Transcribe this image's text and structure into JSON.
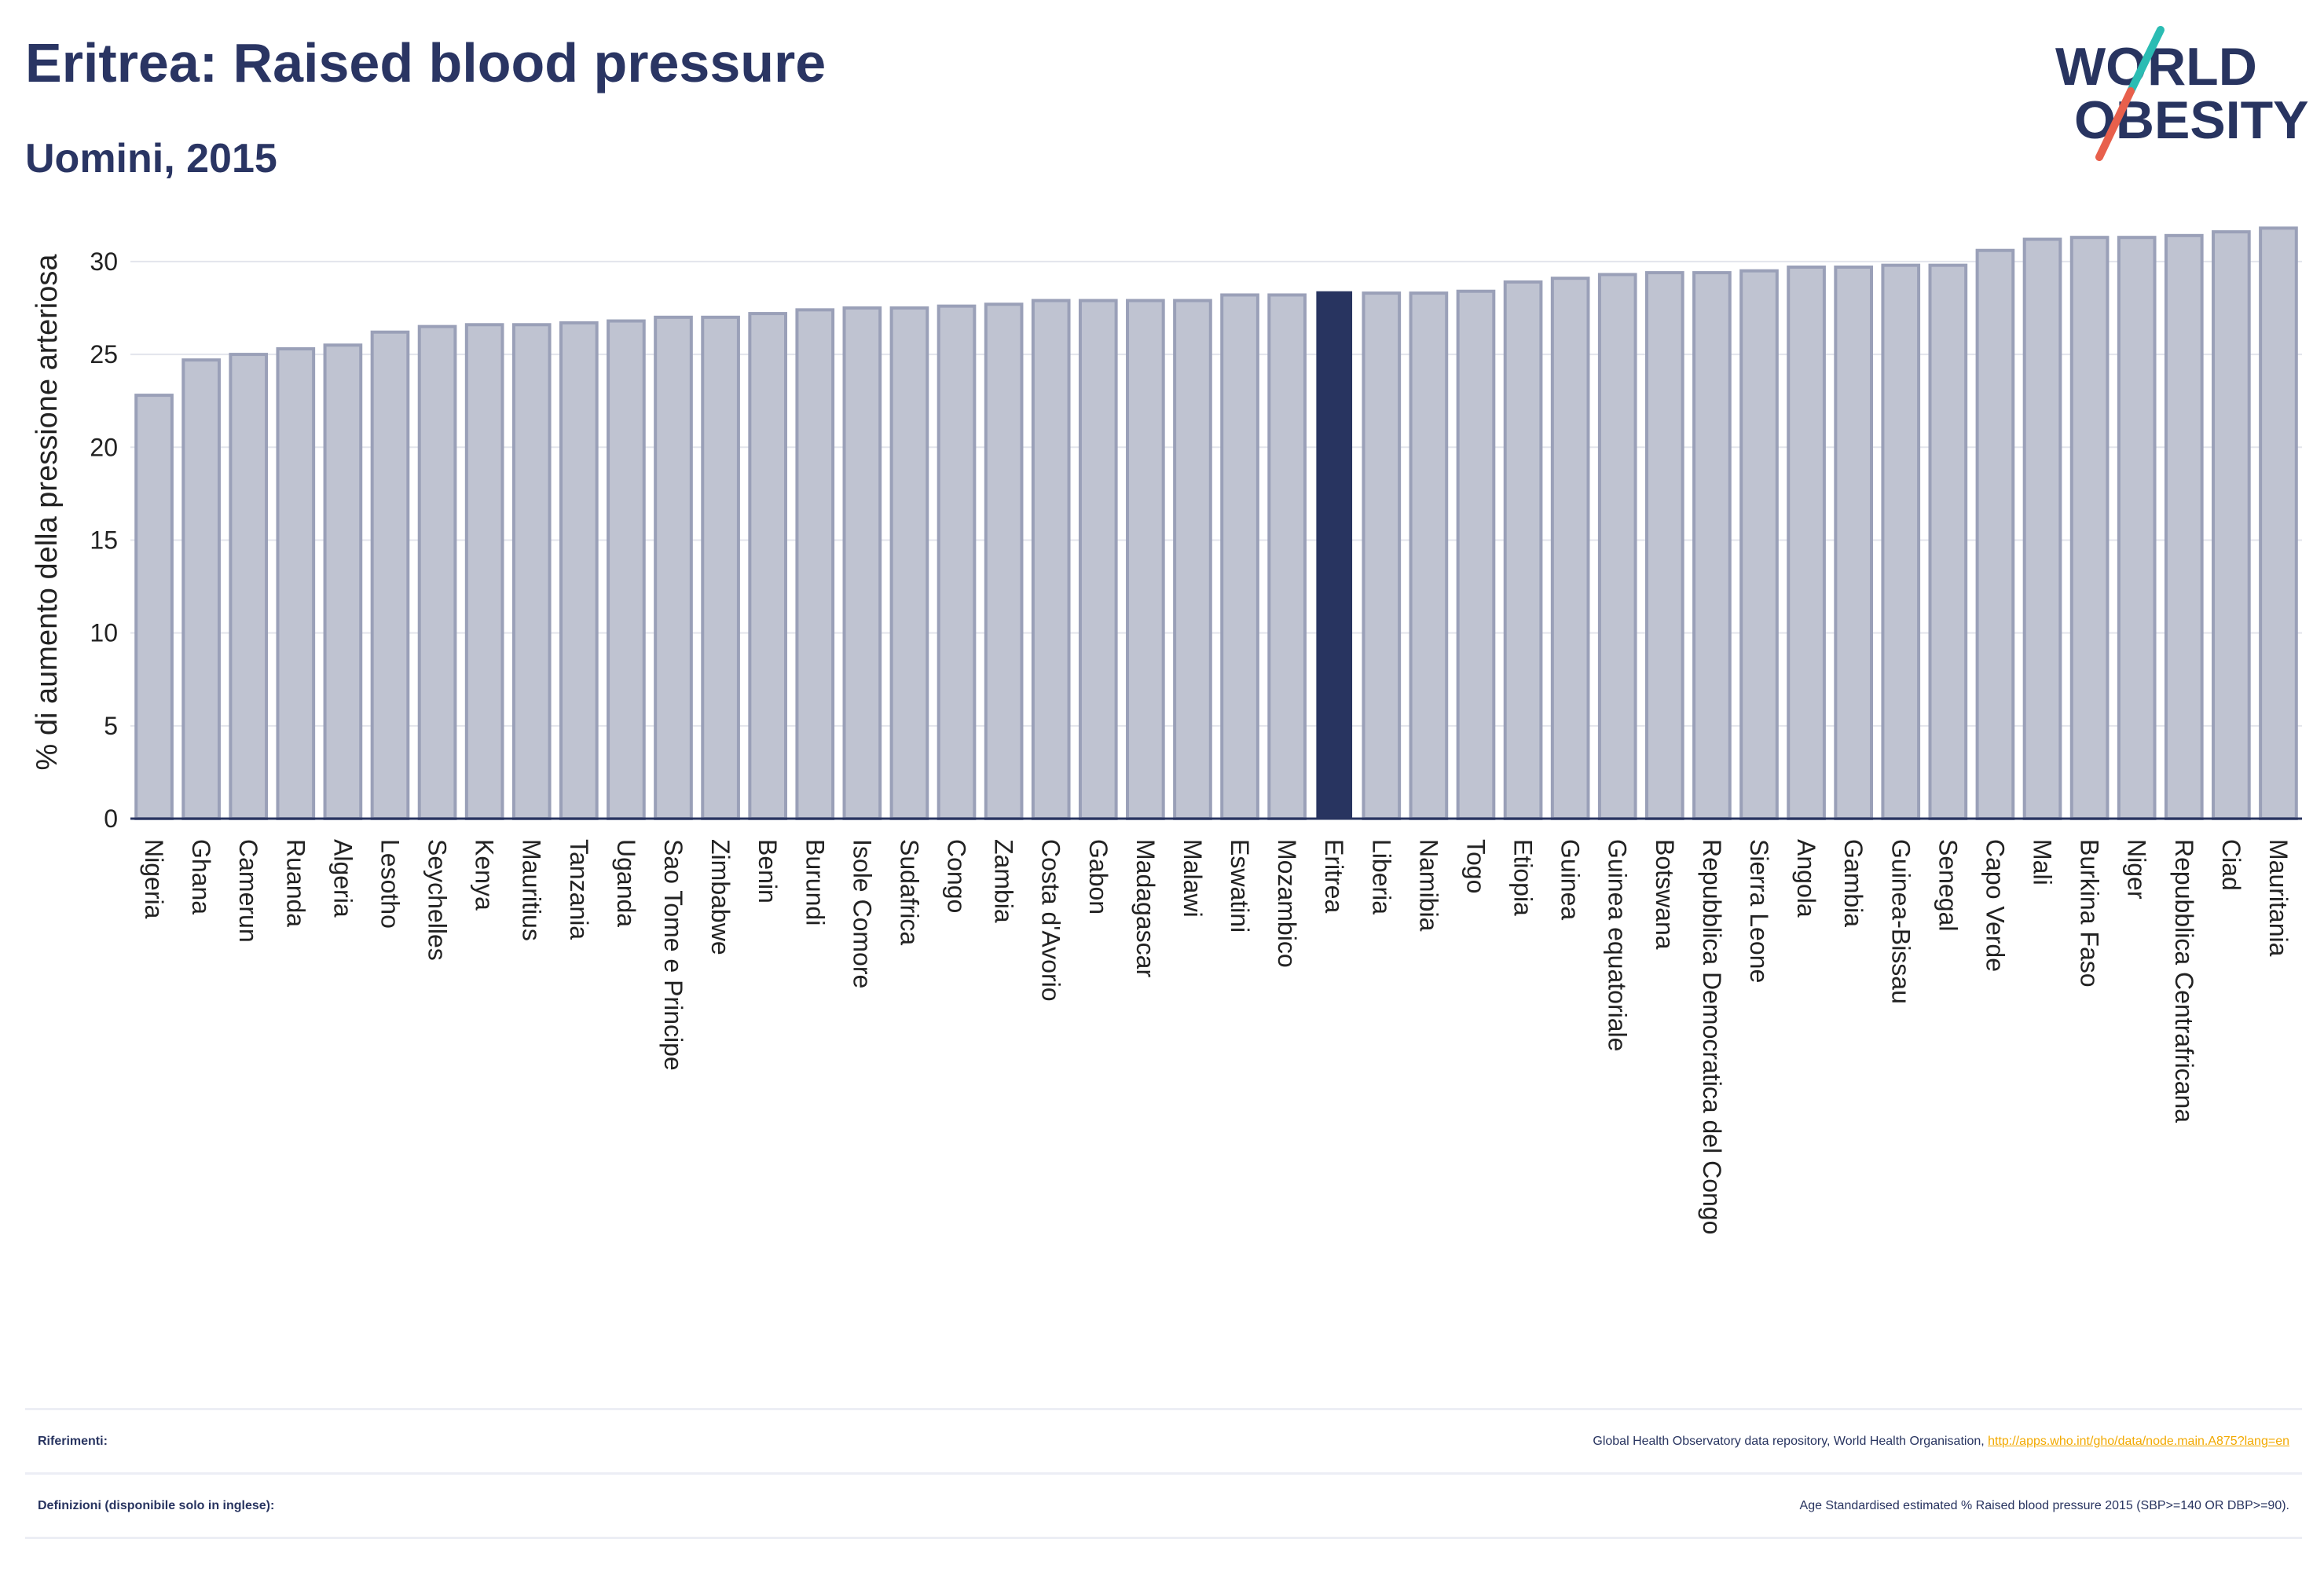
{
  "header": {
    "title": "Eritrea: Raised blood pressure",
    "subtitle": "Uomini, 2015"
  },
  "logo": {
    "line1": "WORLD",
    "line2": "OBESITY",
    "colors": {
      "text": "#283460",
      "slash_teal": "#2bbcb3",
      "slash_red": "#e8604c"
    }
  },
  "colors": {
    "bar": "#bfc3d1",
    "bar_border": "#9aa0b8",
    "highlight": "#283460",
    "grid": "#e3e5ec",
    "axis": "#283460"
  },
  "chart_data": {
    "type": "bar",
    "title": "Eritrea: Raised blood pressure",
    "subtitle": "Uomini, 2015",
    "xlabel": "",
    "ylabel": "% di aumento della pressione arteriosa",
    "ylim": [
      0,
      33
    ],
    "yticks": [
      0,
      5,
      10,
      15,
      20,
      25,
      30
    ],
    "grid": true,
    "highlight": "Eritrea",
    "categories": [
      "Nigeria",
      "Ghana",
      "Camerun",
      "Ruanda",
      "Algeria",
      "Lesotho",
      "Seychelles",
      "Kenya",
      "Mauritius",
      "Tanzania",
      "Uganda",
      "Sao Tome e Principe",
      "Zimbabwe",
      "Benin",
      "Burundi",
      "Isole Comore",
      "Sudafrica",
      "Congo",
      "Zambia",
      "Costa d'Avorio",
      "Gabon",
      "Madagascar",
      "Malawi",
      "Eswatini",
      "Mozambico",
      "Eritrea",
      "Liberia",
      "Namibia",
      "Togo",
      "Etiopia",
      "Guinea",
      "Guinea equatoriale",
      "Botswana",
      "Repubblica Democratica del Congo",
      "Sierra Leone",
      "Angola",
      "Gambia",
      "Guinea-Bissau",
      "Senegal",
      "Capo Verde",
      "Mali",
      "Burkina Faso",
      "Niger",
      "Repubblica Centrafricana",
      "Ciad",
      "Mauritania"
    ],
    "values": [
      22.8,
      24.7,
      25.0,
      25.3,
      25.5,
      26.2,
      26.5,
      26.6,
      26.6,
      26.7,
      26.8,
      27.0,
      27.0,
      27.2,
      27.4,
      27.5,
      27.5,
      27.6,
      27.7,
      27.9,
      27.9,
      27.9,
      27.9,
      28.2,
      28.2,
      28.4,
      28.3,
      28.3,
      28.4,
      28.9,
      29.1,
      29.3,
      29.4,
      29.4,
      29.5,
      29.7,
      29.7,
      29.8,
      29.8,
      30.6,
      31.2,
      31.3,
      31.3,
      31.4,
      31.6,
      31.8
    ]
  },
  "footer": {
    "references_label": "Riferimenti:",
    "references_text": "Global Health Observatory data repository, World Health Organisation,",
    "references_link": "http://apps.who.int/gho/data/node.main.A875?lang=en",
    "definitions_label": "Definizioni (disponibile solo in inglese):",
    "definitions_text": "Age Standardised estimated % Raised blood pressure 2015 (SBP>=140 OR DBP>=90)."
  }
}
